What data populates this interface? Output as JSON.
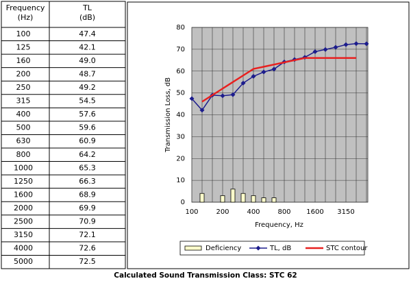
{
  "table": {
    "header": [
      [
        "Frequency",
        "(Hz)"
      ],
      [
        "TL",
        "(dB)"
      ]
    ],
    "rows": [
      [
        "100",
        "47.4"
      ],
      [
        "125",
        "42.1"
      ],
      [
        "160",
        "49.0"
      ],
      [
        "200",
        "48.7"
      ],
      [
        "250",
        "49.2"
      ],
      [
        "315",
        "54.5"
      ],
      [
        "400",
        "57.6"
      ],
      [
        "500",
        "59.6"
      ],
      [
        "630",
        "60.9"
      ],
      [
        "800",
        "64.2"
      ],
      [
        "1000",
        "65.3"
      ],
      [
        "1250",
        "66.3"
      ],
      [
        "1600",
        "68.9"
      ],
      [
        "2000",
        "69.9"
      ],
      [
        "2500",
        "70.9"
      ],
      [
        "3150",
        "72.1"
      ],
      [
        "4000",
        "72.6"
      ],
      [
        "5000",
        "72.5"
      ]
    ]
  },
  "chart_data": {
    "type": "line",
    "y_label": "Transmission Loss, dB",
    "x_label": "Frequency, Hz",
    "categories": [
      "100",
      null,
      null,
      "200",
      null,
      null,
      "400",
      null,
      null,
      "800",
      null,
      null,
      "1600",
      null,
      null,
      "3150",
      null,
      null
    ],
    "series": [
      {
        "name": "Deficiency",
        "type": "bar",
        "color": "#ffffcc",
        "values": [
          null,
          4,
          0,
          3,
          6,
          4,
          3,
          2,
          2,
          0,
          0,
          0,
          0,
          0,
          0,
          0,
          0,
          null
        ]
      },
      {
        "name": "TL, dB",
        "color": "#1c1c8c",
        "marker": "diamond",
        "values": [
          47.4,
          42.1,
          49.0,
          48.7,
          49.2,
          54.5,
          57.6,
          59.6,
          60.9,
          64.2,
          65.3,
          66.3,
          68.9,
          69.9,
          70.9,
          72.1,
          72.6,
          72.5
        ]
      },
      {
        "name": "STC contour",
        "color": "#e8201f",
        "values": [
          null,
          46,
          49,
          52,
          55,
          58,
          61,
          62,
          63,
          64,
          65,
          66,
          66,
          66,
          66,
          66,
          66,
          null
        ]
      }
    ],
    "ylim": [
      0,
      80
    ],
    "yticks": [
      0,
      10,
      20,
      30,
      40,
      50,
      60,
      70,
      80
    ],
    "grid": true,
    "legend": "bottom"
  },
  "caption": "Calculated Sound Transmission Class:  STC 62"
}
